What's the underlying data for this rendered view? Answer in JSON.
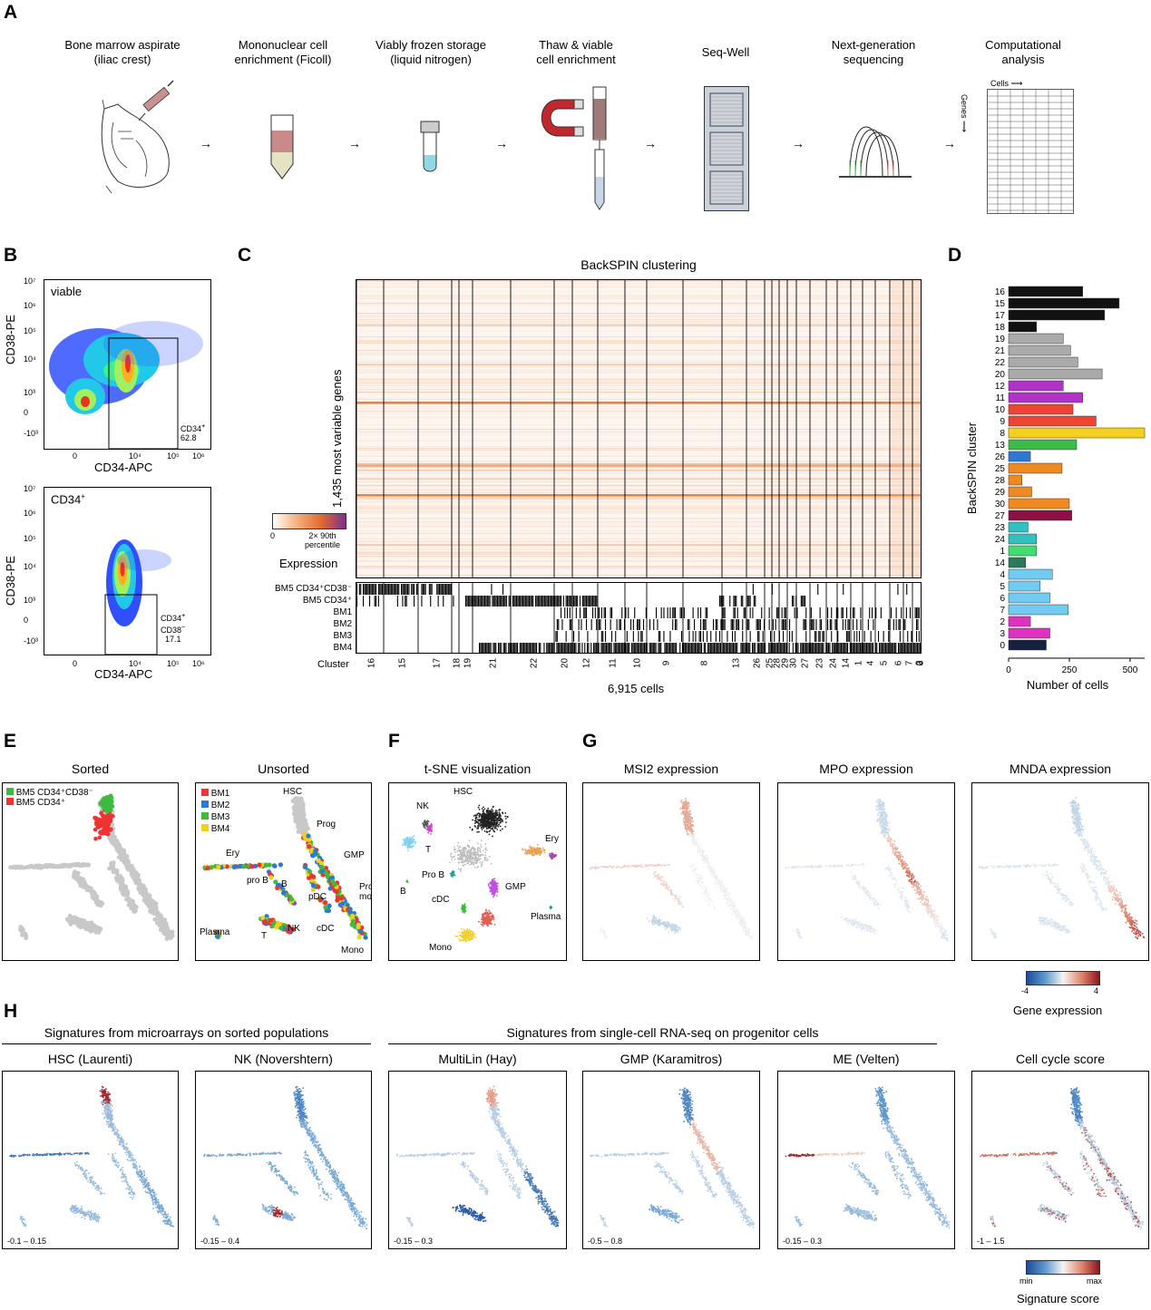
{
  "panels": {
    "A": "A",
    "B": "B",
    "C": "C",
    "D": "D",
    "E": "E",
    "F": "F",
    "G": "G",
    "H": "H"
  },
  "workflow": {
    "steps": [
      {
        "line1": "Bone marrow aspirate",
        "line2": "(iliac crest)"
      },
      {
        "line1": "Mononuclear cell",
        "line2": "enrichment (Ficoll)"
      },
      {
        "line1": "Viably frozen storage",
        "line2": "(liquid nitrogen)"
      },
      {
        "line1": "Thaw & viable",
        "line2": "cell enrichment"
      },
      {
        "line1": "Seq-Well",
        "line2": ""
      },
      {
        "line1": "Next-generation",
        "line2": "sequencing"
      },
      {
        "line1": "Computational",
        "line2": "analysis"
      }
    ],
    "arrow": "→",
    "matrix_cells_label": "Cells",
    "matrix_genes_label": "Genes"
  },
  "flow": {
    "top": {
      "gate_label": "viable",
      "ylabel": "CD38-PE",
      "xlabel": "CD34-APC",
      "gate_name": "CD34",
      "gate_sup": "+",
      "gate_value": "62.8"
    },
    "bottom": {
      "gate_label": "CD34",
      "gate_label_sup": "+",
      "ylabel": "CD38-PE",
      "xlabel": "CD34-APC",
      "gate_name1": "CD34",
      "gate_sup1": "+",
      "gate_name2": "CD38",
      "gate_sup2": "−",
      "gate_value": "17.1"
    },
    "yticks": [
      "10⁷",
      "10⁶",
      "10⁵",
      "10⁴",
      "10³",
      "0",
      "-10³"
    ],
    "xticks": [
      "0",
      "10⁴",
      "10⁵",
      "10⁶"
    ]
  },
  "heatmap": {
    "title": "BackSPIN clustering",
    "ylabel": "1,435 most variable genes",
    "legend_min": "0",
    "legend_max": "2× 90th",
    "legend_max2": "percentile",
    "legend_title": "Expression",
    "sample_rows": [
      "BM5 CD34⁺CD38⁻",
      "BM5 CD34⁺",
      "BM1",
      "BM2",
      "BM3",
      "BM4"
    ],
    "cluster_label": "Cluster",
    "clusters": [
      "16",
      "15",
      "17",
      "18",
      "19",
      "21",
      "22",
      "20",
      "12",
      "11",
      "10",
      "9",
      "8",
      "13",
      "26",
      "25",
      "28",
      "29",
      "30",
      "27",
      "23",
      "24",
      "14",
      "1",
      "4",
      "5",
      "6",
      "7",
      "2",
      "3",
      "0"
    ],
    "xlabel": "6,915 cells"
  },
  "chart_data": {
    "type": "bar",
    "title": "",
    "xlabel": "Number of cells",
    "ylabel": "BackSPIN cluster",
    "xlim": [
      0,
      560
    ],
    "xticks": [
      "0",
      "250",
      "500"
    ],
    "categories": [
      "16",
      "15",
      "17",
      "18",
      "19",
      "21",
      "22",
      "20",
      "12",
      "11",
      "10",
      "9",
      "8",
      "13",
      "26",
      "25",
      "28",
      "29",
      "30",
      "27",
      "23",
      "24",
      "1",
      "14",
      "4",
      "5",
      "6",
      "7",
      "2",
      "3",
      "0"
    ],
    "values": [
      305,
      455,
      395,
      115,
      225,
      255,
      285,
      385,
      225,
      305,
      265,
      360,
      560,
      280,
      90,
      220,
      55,
      95,
      250,
      260,
      80,
      115,
      115,
      70,
      180,
      130,
      170,
      245,
      90,
      170,
      155
    ],
    "colors": [
      "#111111",
      "#111111",
      "#111111",
      "#111111",
      "#aaaaaa",
      "#aaaaaa",
      "#aaaaaa",
      "#aaaaaa",
      "#b032c8",
      "#b032c8",
      "#ee4433",
      "#ee4433",
      "#f5d020",
      "#3cbb4a",
      "#2f78d2",
      "#f08a20",
      "#f08a20",
      "#f08a20",
      "#f08a20",
      "#8a1046",
      "#30c0c0",
      "#30c0c0",
      "#40dd70",
      "#2a7a5a",
      "#70ccf2",
      "#70ccf2",
      "#70ccf2",
      "#70ccf2",
      "#e030c0",
      "#e030c0",
      "#15213f"
    ]
  },
  "embed_e": {
    "sorted_title": "Sorted",
    "sorted_legend": [
      {
        "label": "BM5 CD34⁺CD38⁻",
        "color": "#3cbb3c"
      },
      {
        "label": "BM5 CD34⁺",
        "color": "#ee3333"
      }
    ],
    "unsorted_title": "Unsorted",
    "unsorted_legend": [
      {
        "label": "BM1",
        "color": "#ee3333"
      },
      {
        "label": "BM2",
        "color": "#2a78d8"
      },
      {
        "label": "BM3",
        "color": "#3cbb3c"
      },
      {
        "label": "BM4",
        "color": "#f0d020"
      }
    ],
    "unsorted_labels": [
      "HSC",
      "Prog",
      "GMP",
      "Ery",
      "pro B",
      "B",
      "pDC",
      "Pro-",
      "mono",
      "Plasma",
      "T",
      "NK",
      "cDC",
      "Mono"
    ]
  },
  "embed_f": {
    "title": "t-SNE visualization",
    "labels": [
      "NK",
      "HSC",
      "Ery",
      "T",
      "Pro B",
      "GMP",
      "B",
      "cDC",
      "Plasma",
      "Mono"
    ]
  },
  "embed_g": {
    "titles": [
      "MSI2 expression",
      "MPO expression",
      "MNDA expression"
    ],
    "scale_min": "-4",
    "scale_max": "4",
    "scale_title": "Gene expression"
  },
  "embed_h": {
    "group1": "Signatures from microarrays on sorted populations",
    "group2": "Signatures from single-cell RNA-seq on progenitor cells",
    "plots": [
      {
        "title": "HSC (Laurenti)",
        "range": "-0.1 – 0.15"
      },
      {
        "title": "NK (Novershtern)",
        "range": "-0.15 – 0.4"
      },
      {
        "title": "MultiLin (Hay)",
        "range": "-0.15 – 0.3"
      },
      {
        "title": "GMP (Karamitros)",
        "range": "-0.5 – 0.8"
      },
      {
        "title": "ME (Velten)",
        "range": "-0.15 – 0.3"
      },
      {
        "title": "Cell cycle score",
        "range": "-1 – 1.5"
      }
    ],
    "scale_min": "min",
    "scale_max": "max",
    "scale_title": "Signature score"
  }
}
